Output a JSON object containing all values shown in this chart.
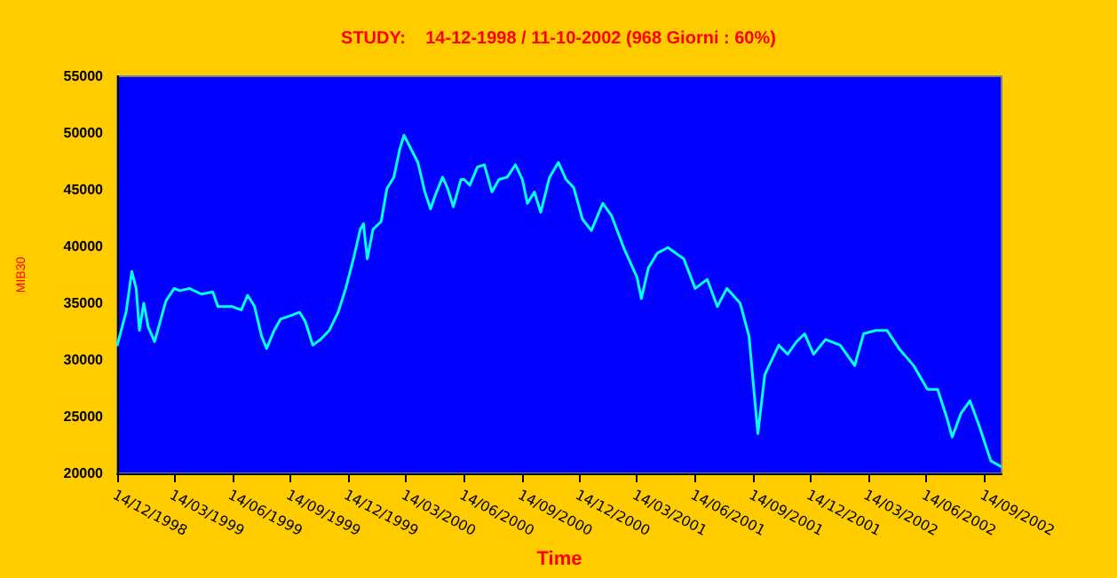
{
  "chart_data": {
    "type": "line",
    "title": "STUDY:    14-12-1998 / 11-10-2002 (968 Giorni : 60%)",
    "xlabel": "Time",
    "ylabel": "MIB30",
    "x": [
      "1998-12-14",
      "1998-12-28",
      "1999-01-06",
      "1999-01-13",
      "1999-01-18",
      "1999-01-25",
      "1999-02-01",
      "1999-02-11",
      "1999-02-20",
      "1999-03-01",
      "1999-03-14",
      "1999-03-23",
      "1999-04-07",
      "1999-04-26",
      "1999-05-14",
      "1999-05-22",
      "1999-06-02",
      "1999-06-14",
      "1999-06-28",
      "1999-07-08",
      "1999-07-19",
      "1999-07-30",
      "1999-08-07",
      "1999-08-19",
      "1999-08-29",
      "1999-09-14",
      "1999-09-28",
      "1999-10-07",
      "1999-10-19",
      "1999-10-31",
      "1999-11-14",
      "1999-11-28",
      "1999-12-10",
      "1999-12-23",
      "2000-01-02",
      "2000-01-07",
      "2000-01-13",
      "2000-01-22",
      "2000-02-04",
      "2000-02-13",
      "2000-02-24",
      "2000-03-04",
      "2000-03-11",
      "2000-03-23",
      "2000-04-02",
      "2000-04-13",
      "2000-04-22",
      "2000-04-30",
      "2000-05-11",
      "2000-05-19",
      "2000-05-28",
      "2000-06-09",
      "2000-06-14",
      "2000-06-23",
      "2000-07-05",
      "2000-07-16",
      "2000-07-28",
      "2000-08-08",
      "2000-08-21",
      "2000-09-03",
      "2000-09-14",
      "2000-09-22",
      "2000-10-03",
      "2000-10-13",
      "2000-10-27",
      "2000-11-10",
      "2000-11-22",
      "2000-12-04",
      "2000-12-18",
      "2001-01-01",
      "2001-01-19",
      "2001-02-02",
      "2001-02-21",
      "2001-03-14",
      "2001-03-21",
      "2001-04-01",
      "2001-04-15",
      "2001-05-02",
      "2001-05-27",
      "2001-06-14",
      "2001-07-03",
      "2001-07-19",
      "2001-08-03",
      "2001-08-24",
      "2001-09-07",
      "2001-09-21",
      "2001-10-02",
      "2001-10-24",
      "2001-11-07",
      "2001-11-21",
      "2001-12-04",
      "2001-12-18",
      "2002-01-06",
      "2002-01-29",
      "2002-02-21",
      "2002-03-07",
      "2002-03-26",
      "2002-04-13",
      "2002-05-02",
      "2002-05-25",
      "2002-06-16",
      "2002-07-02",
      "2002-07-16",
      "2002-07-25",
      "2002-08-08",
      "2002-08-22",
      "2002-09-05",
      "2002-09-24",
      "2002-10-10"
    ],
    "series": [
      {
        "color": "#00ffff",
        "values": [
          31300,
          34200,
          37800,
          36300,
          32600,
          35000,
          32900,
          31600,
          33400,
          35200,
          36300,
          36100,
          36300,
          35800,
          36000,
          34700,
          34700,
          34700,
          34400,
          35700,
          34700,
          32100,
          31000,
          32600,
          33600,
          33900,
          34200,
          33400,
          31300,
          31800,
          32600,
          34200,
          36300,
          39100,
          41500,
          42000,
          38900,
          41500,
          42200,
          45100,
          46100,
          48500,
          49800,
          48500,
          47400,
          44800,
          43300,
          44600,
          46100,
          45100,
          43500,
          45900,
          45900,
          45400,
          47000,
          47200,
          44800,
          45900,
          46100,
          47200,
          45900,
          43800,
          44800,
          43000,
          46100,
          47400,
          45900,
          45200,
          42400,
          41400,
          43800,
          42700,
          39900,
          37300,
          35400,
          38100,
          39400,
          39900,
          38900,
          36300,
          37100,
          34700,
          36300,
          35000,
          32100,
          23500,
          28700,
          31300,
          30500,
          31600,
          32300,
          30500,
          31800,
          31300,
          29500,
          32300,
          32600,
          32600,
          31000,
          29500,
          27400,
          27400,
          25000,
          23200,
          25300,
          26400,
          24300,
          21100,
          20600
        ]
      }
    ],
    "xlim": [
      "1998-12-14",
      "2002-10-11"
    ],
    "xticks": [
      {
        "value": "1998-12-14",
        "label": "14/12/1998"
      },
      {
        "value": "1999-03-14",
        "label": "14/03/1999"
      },
      {
        "value": "1999-06-14",
        "label": "14/06/1999"
      },
      {
        "value": "1999-09-14",
        "label": "14/09/1999"
      },
      {
        "value": "1999-12-14",
        "label": "14/12/1999"
      },
      {
        "value": "2000-03-14",
        "label": "14/03/2000"
      },
      {
        "value": "2000-06-14",
        "label": "14/06/2000"
      },
      {
        "value": "2000-09-14",
        "label": "14/09/2000"
      },
      {
        "value": "2000-12-14",
        "label": "14/12/2000"
      },
      {
        "value": "2001-03-14",
        "label": "14/03/2001"
      },
      {
        "value": "2001-06-14",
        "label": "14/06/2001"
      },
      {
        "value": "2001-09-14",
        "label": "14/09/2001"
      },
      {
        "value": "2001-12-14",
        "label": "14/12/2001"
      },
      {
        "value": "2002-03-14",
        "label": "14/03/2002"
      },
      {
        "value": "2002-06-14",
        "label": "14/06/2002"
      },
      {
        "value": "2002-09-14",
        "label": "14/09/2002"
      }
    ],
    "ylim": [
      20000,
      55000
    ],
    "yticks": [
      20000,
      25000,
      30000,
      35000,
      40000,
      45000,
      50000,
      55000
    ],
    "grid": false,
    "marker": "none",
    "line_style": "solid"
  }
}
